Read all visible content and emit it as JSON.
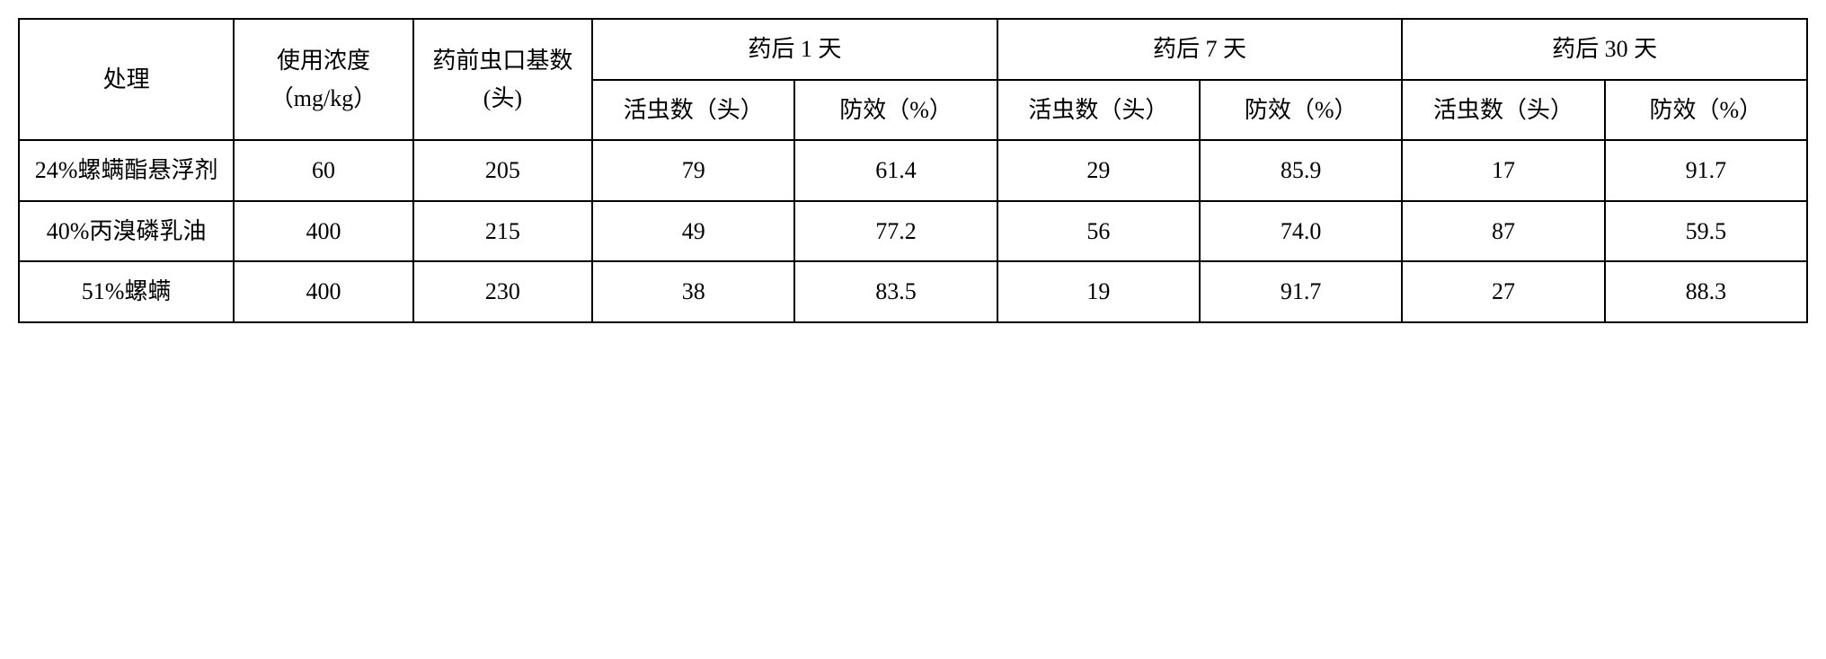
{
  "table": {
    "type": "table",
    "headers": {
      "treatment": "处理",
      "concentration": "使用浓度（mg/kg）",
      "baseline": "药前虫口基数(头)",
      "day1": "药后 1 天",
      "day7": "药后 7 天",
      "day30": "药后 30 天",
      "live_count": "活虫数（头）",
      "efficacy": "防效（%）",
      "live_count_alt": "活虫数（头）",
      "efficacy_alt": "防效（%）"
    },
    "rows": [
      {
        "treatment": "24%螺螨酯悬浮剂",
        "concentration": "60",
        "baseline": "205",
        "day1_live": "79",
        "day1_eff": "61.4",
        "day7_live": "29",
        "day7_eff": "85.9",
        "day30_live": "17",
        "day30_eff": "91.7"
      },
      {
        "treatment": "40%丙溴磷乳油",
        "concentration": "400",
        "baseline": "215",
        "day1_live": "49",
        "day1_eff": "77.2",
        "day7_live": "56",
        "day7_eff": "74.0",
        "day30_live": "87",
        "day30_eff": "59.5"
      },
      {
        "treatment": "51%螺螨",
        "concentration": "400",
        "baseline": "230",
        "day1_live": "38",
        "day1_eff": "83.5",
        "day7_live": "19",
        "day7_eff": "91.7",
        "day30_live": "27",
        "day30_eff": "88.3"
      }
    ],
    "border_color": "#000000",
    "background_color": "#ffffff",
    "text_color": "#000000",
    "font_size": 26
  }
}
